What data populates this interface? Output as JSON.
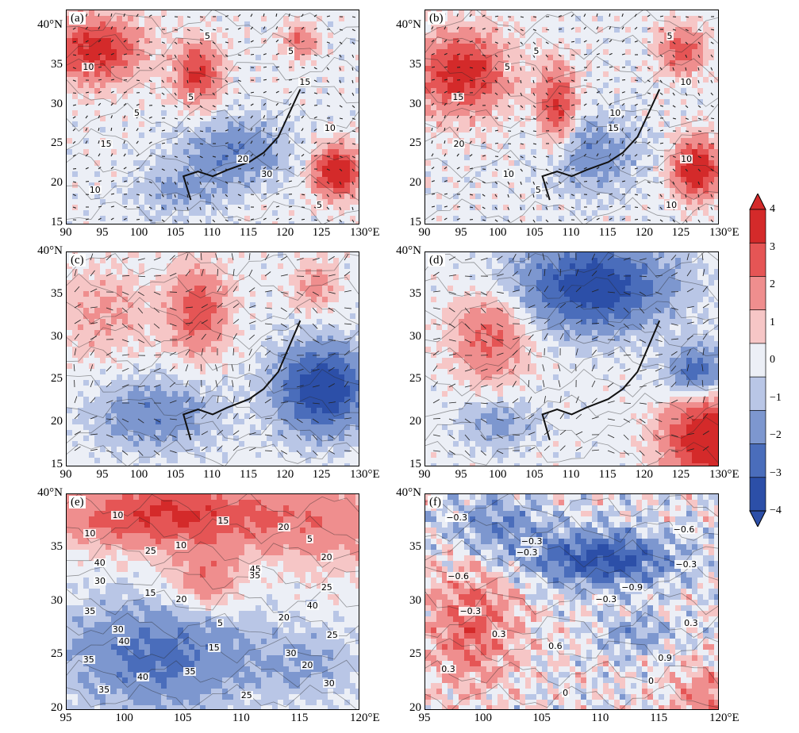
{
  "colors": {
    "neg4": "#2c4fa8",
    "neg3": "#4a6dbb",
    "neg2": "#7d97cf",
    "neg1": "#b9c6e6",
    "zero": "#eceff6",
    "pos1": "#f6c6c6",
    "pos2": "#ef8e8e",
    "pos3": "#e55555",
    "pos4": "#d42a2a"
  },
  "colorbar": {
    "labels": [
      "4",
      "3",
      "2",
      "1",
      "0",
      "−1",
      "−2",
      "−3",
      "−4"
    ]
  },
  "panels": [
    {
      "label": "(a)",
      "xticks": [
        "90",
        "95",
        "100",
        "105",
        "110",
        "115",
        "120",
        "125",
        "130°E"
      ],
      "yticks": [
        "40°N",
        "35",
        "30",
        "25",
        "20",
        "15"
      ],
      "contour_labels": [
        "5",
        "5",
        "10",
        "15",
        "5",
        "5",
        "10",
        "15",
        "20",
        "30",
        "10",
        "5"
      ]
    },
    {
      "label": "(b)",
      "xticks": [
        "90",
        "95",
        "100",
        "105",
        "110",
        "115",
        "120",
        "125",
        "130°E"
      ],
      "yticks": [
        "40°N",
        "35",
        "30",
        "25",
        "20",
        "15"
      ],
      "contour_labels": [
        "5",
        "5",
        "5",
        "10",
        "15",
        "10",
        "15",
        "20",
        "10",
        "10",
        "5",
        "10"
      ]
    },
    {
      "label": "(c)",
      "xticks": [
        "90",
        "95",
        "100",
        "105",
        "110",
        "115",
        "120",
        "125",
        "130°E"
      ],
      "yticks": [
        "40°N",
        "35",
        "30",
        "25",
        "20",
        "15"
      ]
    },
    {
      "label": "(d)",
      "xticks": [
        "90",
        "95",
        "100",
        "105",
        "110",
        "115",
        "120",
        "125",
        "130°E"
      ],
      "yticks": [
        "40°N",
        "35",
        "30",
        "25",
        "20",
        "15"
      ]
    },
    {
      "label": "(e)",
      "xticks": [
        "95",
        "100",
        "105",
        "110",
        "115",
        "120°E"
      ],
      "yticks": [
        "40°N",
        "35",
        "30",
        "25",
        "20"
      ],
      "contour_labels": [
        "10",
        "15",
        "20",
        "10",
        "5",
        "10",
        "25",
        "20",
        "40",
        "45",
        "35",
        "30",
        "25",
        "15",
        "20",
        "40",
        "35",
        "20",
        "5",
        "30",
        "25",
        "40",
        "15",
        "30",
        "35",
        "20",
        "35",
        "40",
        "30",
        "35",
        "25"
      ]
    },
    {
      "label": "(f)",
      "xticks": [
        "95",
        "100",
        "105",
        "110",
        "115",
        "120°E"
      ],
      "yticks": [
        "40°N",
        "35",
        "30",
        "25",
        "20"
      ],
      "contour_labels": [
        "−0.3",
        "−0.6",
        "−0.3",
        "−0.3",
        "−0.3",
        "−0.6",
        "−0.9",
        "−0.3",
        "−0.3",
        "0.3",
        "0.3",
        "0.6",
        "0.9",
        "0.3",
        "0",
        "0"
      ]
    }
  ],
  "chart_data": [
    {
      "type": "heatmap",
      "panel": "(a)",
      "xlabel": "",
      "ylabel": "",
      "xlim": [
        90,
        130
      ],
      "ylim": [
        15,
        42
      ],
      "grid": false,
      "features": "red 3–4 over Tibetan plateau (90–100E, 32–40N), red 105–110E 30–37N, tropical cyclone red center near 127E 22N, blue −1 to −3 over southeast China"
    },
    {
      "type": "heatmap",
      "panel": "(b)",
      "xlim": [
        90,
        130
      ],
      "ylim": [
        15,
        42
      ],
      "grid": false,
      "features": "red over plateau and 105–110E, cyclone red center near 127E 22N, red cluster 122–127E 35–40N"
    },
    {
      "type": "heatmap",
      "panel": "(c)",
      "xlim": [
        90,
        130
      ],
      "ylim": [
        15,
        40
      ],
      "grid": false,
      "features": "red over 105–112E 28–37N, strong blue vortex centered near 125E 24N"
    },
    {
      "type": "heatmap",
      "panel": "(d)",
      "xlim": [
        90,
        130
      ],
      "ylim": [
        15,
        40
      ],
      "grid": false,
      "features": "deep blue over 105–125E 30–40N, red 95–105E 26–35N, red southeast corner 122–130E 15–23N"
    },
    {
      "type": "heatmap",
      "panel": "(e)",
      "xlim": [
        95,
        120
      ],
      "ylim": [
        20,
        40
      ],
      "grid": false,
      "features": "red north half, blue southwest, contour values 5–45"
    },
    {
      "type": "heatmap",
      "panel": "(f)",
      "xlim": [
        95,
        120
      ],
      "ylim": [
        20,
        40
      ],
      "grid": false,
      "features": "blue band 105–115E 31–36N (−0.3 to −0.9), red speckle southwest (0.3 to 0.9)"
    }
  ]
}
